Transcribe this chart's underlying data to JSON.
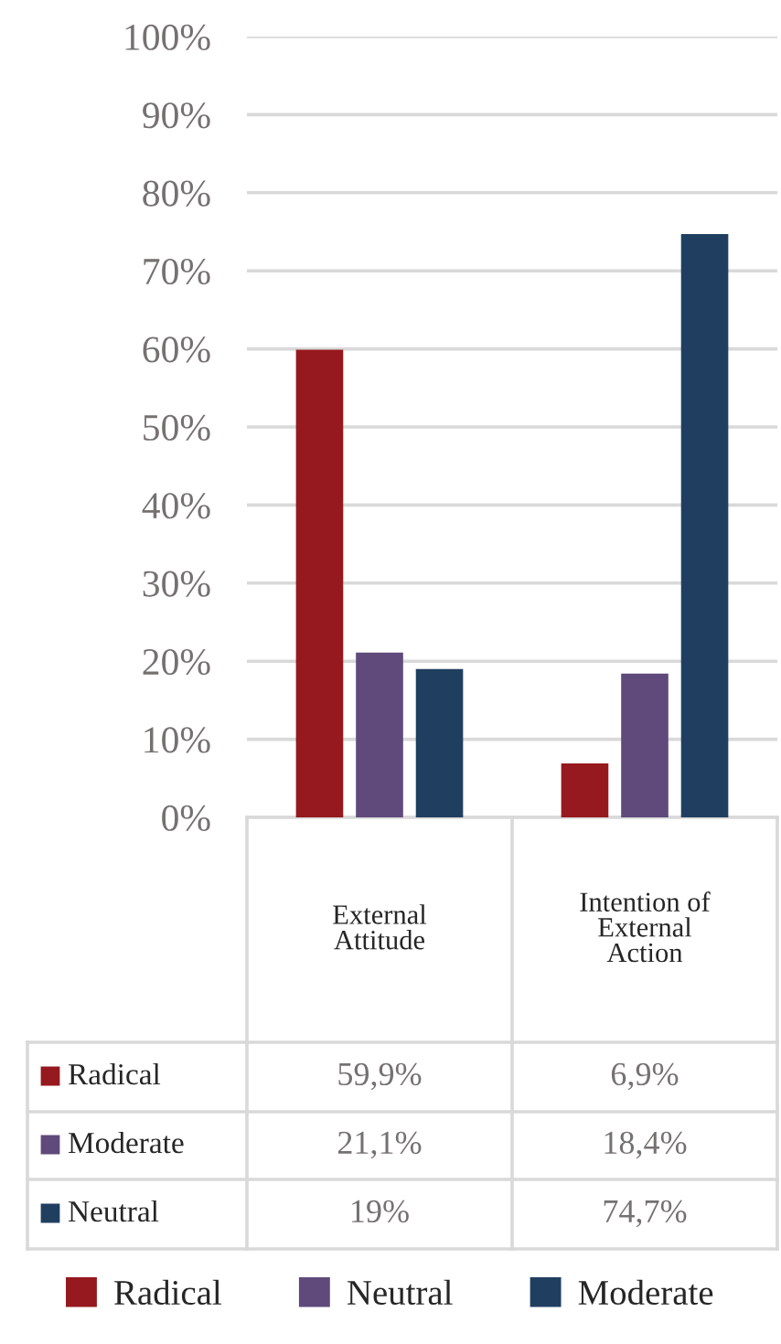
{
  "chart_data": {
    "type": "bar",
    "categories": [
      "External Attitude",
      "Intention of External Action"
    ],
    "series": [
      {
        "name": "Radical",
        "color": "#95191e",
        "values": [
          59.9,
          6.9
        ],
        "value_labels": [
          "59,9%",
          "6,9%"
        ]
      },
      {
        "name": "Neutral",
        "color": "#5f4a7b",
        "values": [
          21.1,
          18.4
        ],
        "value_labels": [
          "21,1%",
          "18,4%"
        ]
      },
      {
        "name": "Moderate",
        "color": "#203f60",
        "values": [
          19,
          74.7
        ],
        "value_labels": [
          "19%",
          "74,7%"
        ]
      }
    ],
    "annotations": [
      "Radical",
      "Moderate",
      "Neutral"
    ],
    "ylim": [
      0,
      100
    ],
    "yticks": [
      {
        "value": 0,
        "label": "0%"
      },
      {
        "value": 10,
        "label": "10%"
      },
      {
        "value": 20,
        "label": "20%"
      },
      {
        "value": 30,
        "label": "30%"
      },
      {
        "value": 40,
        "label": "40%"
      },
      {
        "value": 50,
        "label": "50%"
      },
      {
        "value": 60,
        "label": "60%"
      },
      {
        "value": 70,
        "label": "70%"
      },
      {
        "value": 80,
        "label": "80%"
      },
      {
        "value": 90,
        "label": "90%"
      },
      {
        "value": 100,
        "label": "100%"
      }
    ],
    "grid": "y",
    "legend": "bottom"
  }
}
